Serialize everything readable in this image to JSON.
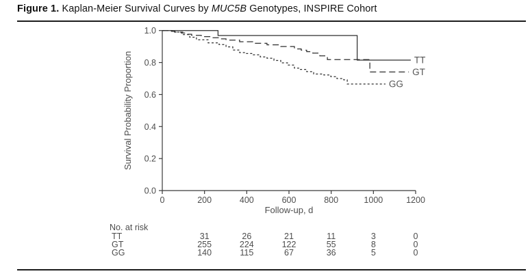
{
  "figure": {
    "label": "Figure 1.",
    "title_pre": " Kaplan-Meier Survival Curves by ",
    "title_gene": "MUC5B",
    "title_post": " Genotypes, INSPIRE Cohort"
  },
  "chart_data": {
    "type": "line",
    "subtype": "kaplan-meier-step",
    "title": "Figure 1. Kaplan-Meier Survival Curves by MUC5B Genotypes, INSPIRE Cohort",
    "xlabel": "Follow-up, d",
    "ylabel": "Survival Probability Proportion",
    "xlim": [
      0,
      1200
    ],
    "ylim": [
      0.0,
      1.0
    ],
    "xticks": [
      0,
      200,
      400,
      600,
      800,
      1000,
      1200
    ],
    "yticks": [
      0.0,
      0.2,
      0.4,
      0.6,
      0.8,
      1.0
    ],
    "grid": false,
    "legend_position": "right-of-line-end",
    "colors": {
      "line": "#2e2e2e",
      "axis": "#3a3a3a",
      "tick_text": "#4d4d4d",
      "legend_text": "#555555",
      "title_text": "#111111"
    },
    "series": [
      {
        "name": "TT",
        "dash": "solid",
        "points": [
          [
            0,
            1.0
          ],
          [
            264,
            1.0
          ],
          [
            264,
            0.969
          ],
          [
            923,
            0.969
          ],
          [
            923,
            0.815
          ],
          [
            1177,
            0.815
          ]
        ]
      },
      {
        "name": "GT",
        "dash": "long-dash",
        "points": [
          [
            0,
            1.0
          ],
          [
            30,
            1.0
          ],
          [
            30,
            0.995
          ],
          [
            60,
            0.995
          ],
          [
            60,
            0.99
          ],
          [
            90,
            0.99
          ],
          [
            90,
            0.984
          ],
          [
            115,
            0.984
          ],
          [
            115,
            0.977
          ],
          [
            139,
            0.977
          ],
          [
            139,
            0.97
          ],
          [
            185,
            0.97
          ],
          [
            185,
            0.962
          ],
          [
            230,
            0.962
          ],
          [
            230,
            0.955
          ],
          [
            269,
            0.955
          ],
          [
            269,
            0.948
          ],
          [
            302,
            0.948
          ],
          [
            302,
            0.94
          ],
          [
            366,
            0.94
          ],
          [
            366,
            0.93
          ],
          [
            431,
            0.93
          ],
          [
            431,
            0.92
          ],
          [
            496,
            0.92
          ],
          [
            496,
            0.911
          ],
          [
            561,
            0.911
          ],
          [
            561,
            0.9
          ],
          [
            626,
            0.9
          ],
          [
            626,
            0.885
          ],
          [
            658,
            0.885
          ],
          [
            658,
            0.877
          ],
          [
            684,
            0.877
          ],
          [
            684,
            0.868
          ],
          [
            713,
            0.868
          ],
          [
            713,
            0.859
          ],
          [
            746,
            0.859
          ],
          [
            746,
            0.842
          ],
          [
            782,
            0.842
          ],
          [
            782,
            0.818
          ],
          [
            983,
            0.818
          ],
          [
            983,
            0.741
          ],
          [
            1168,
            0.741
          ]
        ]
      },
      {
        "name": "GG",
        "dash": "short-dash",
        "points": [
          [
            0,
            1.0
          ],
          [
            58,
            1.0
          ],
          [
            58,
            0.99
          ],
          [
            97,
            0.99
          ],
          [
            97,
            0.975
          ],
          [
            130,
            0.975
          ],
          [
            130,
            0.958
          ],
          [
            162,
            0.958
          ],
          [
            162,
            0.942
          ],
          [
            217,
            0.942
          ],
          [
            217,
            0.923
          ],
          [
            269,
            0.923
          ],
          [
            269,
            0.912
          ],
          [
            302,
            0.912
          ],
          [
            302,
            0.898
          ],
          [
            334,
            0.898
          ],
          [
            334,
            0.878
          ],
          [
            366,
            0.878
          ],
          [
            366,
            0.862
          ],
          [
            399,
            0.862
          ],
          [
            399,
            0.856
          ],
          [
            431,
            0.856
          ],
          [
            431,
            0.848
          ],
          [
            464,
            0.848
          ],
          [
            464,
            0.835
          ],
          [
            496,
            0.835
          ],
          [
            496,
            0.827
          ],
          [
            529,
            0.827
          ],
          [
            529,
            0.813
          ],
          [
            561,
            0.813
          ],
          [
            561,
            0.798
          ],
          [
            593,
            0.798
          ],
          [
            593,
            0.784
          ],
          [
            626,
            0.784
          ],
          [
            626,
            0.765
          ],
          [
            652,
            0.765
          ],
          [
            652,
            0.757
          ],
          [
            684,
            0.757
          ],
          [
            684,
            0.743
          ],
          [
            717,
            0.743
          ],
          [
            717,
            0.728
          ],
          [
            765,
            0.728
          ],
          [
            765,
            0.722
          ],
          [
            798,
            0.722
          ],
          [
            798,
            0.712
          ],
          [
            827,
            0.712
          ],
          [
            827,
            0.7
          ],
          [
            859,
            0.7
          ],
          [
            859,
            0.692
          ],
          [
            876,
            0.692
          ],
          [
            876,
            0.666
          ],
          [
            1057,
            0.666
          ]
        ]
      }
    ],
    "at_risk": {
      "label": "No. at risk",
      "times": [
        200,
        400,
        600,
        800,
        1000,
        1200
      ],
      "rows": [
        {
          "name": "TT",
          "values": [
            31,
            26,
            21,
            11,
            3,
            0
          ]
        },
        {
          "name": "GT",
          "values": [
            255,
            224,
            122,
            55,
            8,
            0
          ]
        },
        {
          "name": "GG",
          "values": [
            140,
            115,
            67,
            36,
            5,
            0
          ]
        }
      ]
    }
  }
}
